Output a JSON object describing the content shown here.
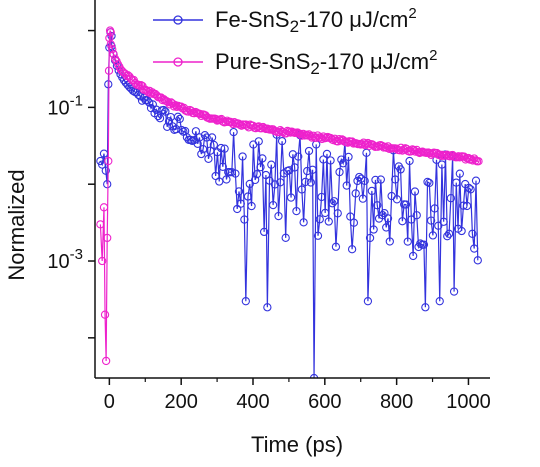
{
  "chart_data": {
    "type": "scatter",
    "xlabel": "Time (ps)",
    "ylabel": "Normalized",
    "x_scale": "linear",
    "y_scale": "log",
    "xlim": [
      -40,
      1060
    ],
    "ylim": [
      3e-05,
      2.5
    ],
    "x_ticks": [
      0,
      200,
      400,
      600,
      800,
      1000
    ],
    "x_tick_labels": [
      "0",
      "200",
      "400",
      "600",
      "800",
      "1000"
    ],
    "y_ticks": [
      0.1,
      0.001
    ],
    "y_tick_labels": [
      {
        "base": "10",
        "exp": "-1"
      },
      {
        "base": "10",
        "exp": "-3"
      }
    ],
    "legend_placement": "top-right",
    "grid": false,
    "series": [
      {
        "name": "Fe-SnS2-170 μJ/cm2",
        "legend_parts": {
          "a": "Fe-SnS",
          "sub": "2",
          "b": "-170 μJ/cm",
          "sup": "2"
        },
        "color": "#3333dd",
        "marker": "open-circle",
        "rise_x": [
          -25,
          -20,
          -15,
          -10,
          -6,
          -3,
          0,
          3,
          6
        ],
        "rise_y": [
          0.02,
          0.018,
          0.025,
          0.015,
          0.01,
          0.2,
          0.6,
          0.95,
          0.85
        ],
        "decay": {
          "t_start": 6,
          "t_end": 1030,
          "step": 5,
          "a1": 0.55,
          "tau1": 12,
          "a2": 0.29,
          "tau2": 95,
          "a3": 0.02,
          "tau3": 900,
          "noise_after": 200
        },
        "dips": [
          {
            "x": 380,
            "y": 0.0003
          },
          {
            "x": 440,
            "y": 0.00025
          },
          {
            "x": 570,
            "y": 3e-05
          },
          {
            "x": 720,
            "y": 0.0003
          },
          {
            "x": 880,
            "y": 0.00025
          },
          {
            "x": 920,
            "y": 0.0003
          },
          {
            "x": 960,
            "y": 0.0004
          }
        ]
      },
      {
        "name": "Pure-SnS2-170 μJ/cm2",
        "legend_parts": {
          "a": "Pure-SnS",
          "sub": "2",
          "b": "-170 μJ/cm",
          "sup": "2"
        },
        "color": "#ee22cc",
        "marker": "open-circle",
        "rise_x": [
          -25,
          -20,
          -15,
          -12,
          -9,
          -6,
          -3,
          -1,
          0,
          2,
          4
        ],
        "rise_y": [
          0.003,
          0.001,
          0.005,
          0.0002,
          5e-05,
          0.002,
          0.02,
          0.3,
          0.8,
          1.0,
          0.95
        ],
        "decay": {
          "t_start": 4,
          "t_end": 1030,
          "step": 4,
          "a1": 0.45,
          "tau1": 10,
          "a2": 0.3,
          "tau2": 80,
          "a3": 0.1,
          "tau3": 650,
          "noise_after": 100000
        }
      }
    ]
  }
}
